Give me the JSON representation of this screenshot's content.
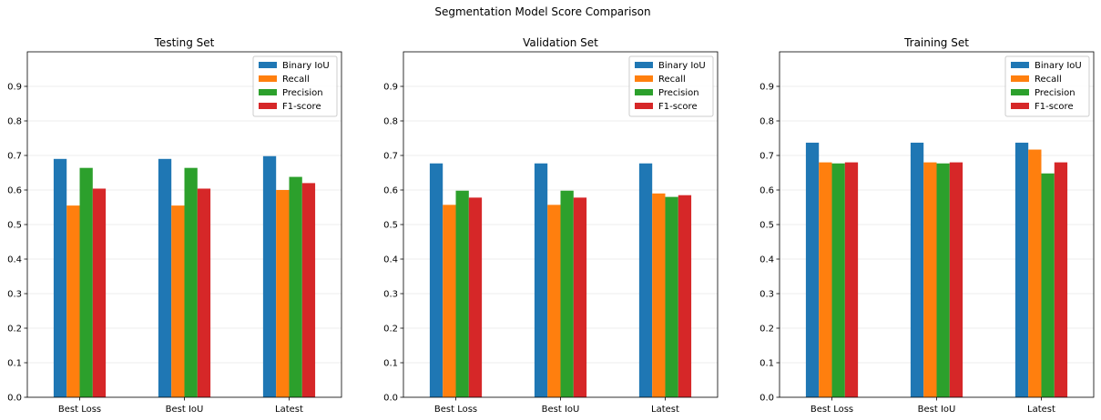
{
  "figure_title": "Segmentation Model Score Comparison",
  "chart_data": [
    {
      "type": "bar",
      "title": "Testing Set",
      "categories": [
        "Best Loss",
        "Best IoU",
        "Latest"
      ],
      "ylim": [
        0,
        1.0
      ],
      "yticks": [
        "0.0",
        "0.1",
        "0.2",
        "0.3",
        "0.4",
        "0.5",
        "0.6",
        "0.7",
        "0.8",
        "0.9"
      ],
      "grid": "y",
      "legend": "top-right",
      "series": [
        {
          "name": "Binary IoU",
          "color": "#1f77b4",
          "values": [
            0.69,
            0.69,
            0.698
          ]
        },
        {
          "name": "Recall",
          "color": "#ff7f0e",
          "values": [
            0.555,
            0.555,
            0.6
          ]
        },
        {
          "name": "Precision",
          "color": "#2ca02c",
          "values": [
            0.664,
            0.664,
            0.638
          ]
        },
        {
          "name": "F1-score",
          "color": "#d62728",
          "values": [
            0.604,
            0.604,
            0.62
          ]
        }
      ]
    },
    {
      "type": "bar",
      "title": "Validation Set",
      "categories": [
        "Best Loss",
        "Best IoU",
        "Latest"
      ],
      "ylim": [
        0,
        1.0
      ],
      "yticks": [
        "0.0",
        "0.1",
        "0.2",
        "0.3",
        "0.4",
        "0.5",
        "0.6",
        "0.7",
        "0.8",
        "0.9"
      ],
      "grid": "y",
      "legend": "top-right",
      "series": [
        {
          "name": "Binary IoU",
          "color": "#1f77b4",
          "values": [
            0.677,
            0.677,
            0.677
          ]
        },
        {
          "name": "Recall",
          "color": "#ff7f0e",
          "values": [
            0.557,
            0.557,
            0.59
          ]
        },
        {
          "name": "Precision",
          "color": "#2ca02c",
          "values": [
            0.598,
            0.598,
            0.58
          ]
        },
        {
          "name": "F1-score",
          "color": "#d62728",
          "values": [
            0.578,
            0.578,
            0.585
          ]
        }
      ]
    },
    {
      "type": "bar",
      "title": "Training Set",
      "categories": [
        "Best Loss",
        "Best IoU",
        "Latest"
      ],
      "ylim": [
        0,
        1.0
      ],
      "yticks": [
        "0.0",
        "0.1",
        "0.2",
        "0.3",
        "0.4",
        "0.5",
        "0.6",
        "0.7",
        "0.8",
        "0.9"
      ],
      "grid": "y",
      "legend": "top-right",
      "series": [
        {
          "name": "Binary IoU",
          "color": "#1f77b4",
          "values": [
            0.737,
            0.737,
            0.737
          ]
        },
        {
          "name": "Recall",
          "color": "#ff7f0e",
          "values": [
            0.68,
            0.68,
            0.717
          ]
        },
        {
          "name": "Precision",
          "color": "#2ca02c",
          "values": [
            0.677,
            0.677,
            0.648
          ]
        },
        {
          "name": "F1-score",
          "color": "#d62728",
          "values": [
            0.68,
            0.68,
            0.68
          ]
        }
      ]
    }
  ]
}
